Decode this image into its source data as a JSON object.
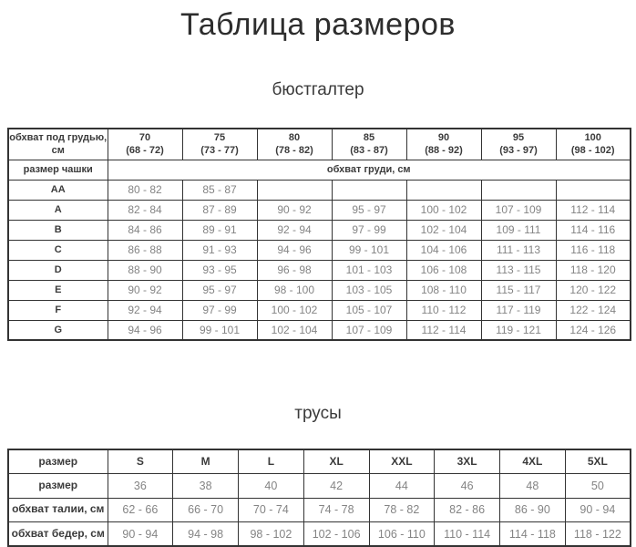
{
  "page": {
    "title": "Таблица размеров",
    "bra_section_title": "бюстгалтер",
    "panties_section_title": "трусы"
  },
  "colors": {
    "background": "#ffffff",
    "border": "#333333",
    "label_text": "#3b3b3b",
    "value_text": "#848484"
  },
  "bra_table": {
    "underbust_label_line1": "обхват под грудью,",
    "underbust_label_line2": "см",
    "cup_label": "размер чашки",
    "bust_label": "обхват груди, см",
    "columns": [
      {
        "size": "70",
        "range": "(68 - 72)"
      },
      {
        "size": "75",
        "range": "(73 - 77)"
      },
      {
        "size": "80",
        "range": "(78 - 82)"
      },
      {
        "size": "85",
        "range": "(83 - 87)"
      },
      {
        "size": "90",
        "range": "(88 - 92)"
      },
      {
        "size": "95",
        "range": "(93 - 97)"
      },
      {
        "size": "100",
        "range": "(98 - 102)"
      }
    ],
    "rows": [
      {
        "cup": "AA",
        "values": [
          "80 - 82",
          "85 - 87",
          "",
          "",
          "",
          "",
          ""
        ]
      },
      {
        "cup": "A",
        "values": [
          "82 - 84",
          "87 - 89",
          "90 - 92",
          "95 - 97",
          "100 - 102",
          "107 - 109",
          "112 - 114"
        ]
      },
      {
        "cup": "B",
        "values": [
          "84 - 86",
          "89 - 91",
          "92 - 94",
          "97 - 99",
          "102 - 104",
          "109 - 111",
          "114 - 116"
        ]
      },
      {
        "cup": "C",
        "values": [
          "86 - 88",
          "91 - 93",
          "94 - 96",
          "99 - 101",
          "104 - 106",
          "111 - 113",
          "116 - 118"
        ]
      },
      {
        "cup": "D",
        "values": [
          "88 - 90",
          "93 - 95",
          "96 - 98",
          "101 - 103",
          "106 - 108",
          "113 - 115",
          "118 - 120"
        ]
      },
      {
        "cup": "E",
        "values": [
          "90 - 92",
          "95 - 97",
          "98 - 100",
          "103 - 105",
          "108 - 110",
          "115 - 117",
          "120 - 122"
        ]
      },
      {
        "cup": "F",
        "values": [
          "92 - 94",
          "97 - 99",
          "100 - 102",
          "105 - 107",
          "110 - 112",
          "117 - 119",
          "122 - 124"
        ]
      },
      {
        "cup": "G",
        "values": [
          "94 - 96",
          "99 - 101",
          "102 - 104",
          "107 - 109",
          "112 - 114",
          "119 - 121",
          "124 - 126"
        ]
      }
    ]
  },
  "panties_table": {
    "rows": [
      {
        "label": "размер",
        "header": true,
        "values": [
          "S",
          "M",
          "L",
          "XL",
          "XXL",
          "3XL",
          "4XL",
          "5XL"
        ]
      },
      {
        "label": "размер",
        "header": false,
        "values": [
          "36",
          "38",
          "40",
          "42",
          "44",
          "46",
          "48",
          "50"
        ]
      },
      {
        "label": "обхват талии, см",
        "header": false,
        "values": [
          "62 - 66",
          "66 - 70",
          "70 - 74",
          "74 - 78",
          "78 - 82",
          "82 - 86",
          "86 - 90",
          "90 - 94"
        ]
      },
      {
        "label": "обхват бедер, см",
        "header": false,
        "values": [
          "90 - 94",
          "94 - 98",
          "98 - 102",
          "102 - 106",
          "106 - 110",
          "110 - 114",
          "114 - 118",
          "118 - 122"
        ]
      }
    ]
  }
}
